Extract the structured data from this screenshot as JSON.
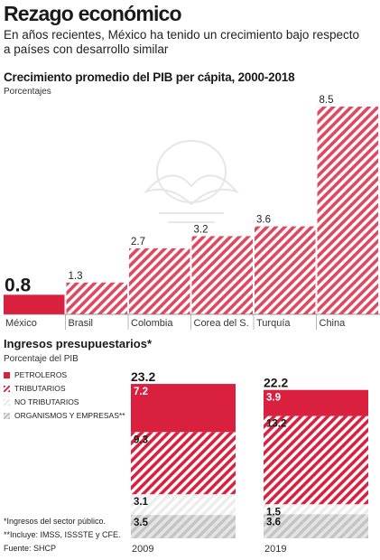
{
  "headline": "Rezago económico",
  "subhead": "En años recientes, México ha tenido un crecimiento bajo respecto a países con desarrollo similar",
  "colors": {
    "accent": "#d9203e",
    "stripe_light": "#f7c9d2",
    "grey": "#cfcfcf",
    "grey_stripe": "#ececec",
    "white_stripe": "#f2f2f2"
  },
  "chart_data": [
    {
      "type": "bar",
      "title": "Crecimiento promedio del PIB per cápita, 2000-2018",
      "ylabel": "Porcentajes",
      "categories": [
        "México",
        "Brasil",
        "Colombia",
        "Corea del S.",
        "Turquía",
        "China"
      ],
      "values": [
        0.8,
        1.3,
        2.7,
        3.2,
        3.6,
        8.5
      ],
      "value_labels": [
        "0.8",
        "1.3",
        "2.7",
        "3.2",
        "3.6",
        "8.5"
      ],
      "highlight": "México",
      "ylim": [
        0,
        8.5
      ]
    },
    {
      "type": "bar",
      "stacked": true,
      "title": "Ingresos presupuestarios*",
      "ylabel": "Porcentaje del PIB",
      "categories": [
        "2009",
        "2019"
      ],
      "totals": [
        "23.2",
        "22.2"
      ],
      "series": [
        {
          "name": "ORGANISMOS Y EMPRESAS**",
          "key": "organismos",
          "values": [
            3.5,
            3.6
          ],
          "labels": [
            "3.5",
            "3.6"
          ]
        },
        {
          "name": "NO TRIBUTARIOS",
          "key": "no_tributarios",
          "values": [
            3.1,
            1.5
          ],
          "labels": [
            "3.1",
            "1.5"
          ]
        },
        {
          "name": "TRIBUTARIOS",
          "key": "tributarios",
          "values": [
            9.3,
            13.2
          ],
          "labels": [
            "9.3",
            "13.2"
          ]
        },
        {
          "name": "PETROLEROS",
          "key": "petroleros",
          "values": [
            7.2,
            3.9
          ],
          "labels": [
            "7.2",
            "3.9"
          ]
        }
      ],
      "legend": [
        "PETROLEROS",
        "TRIBUTARIOS",
        "NO TRIBUTARIOS",
        "ORGANISMOS Y EMPRESAS**"
      ]
    }
  ],
  "footnotes": [
    "*Ingresos del sector público.",
    "**Incluye: IMSS, ISSSTE y CFE.",
    "Fuente: SHCP"
  ]
}
